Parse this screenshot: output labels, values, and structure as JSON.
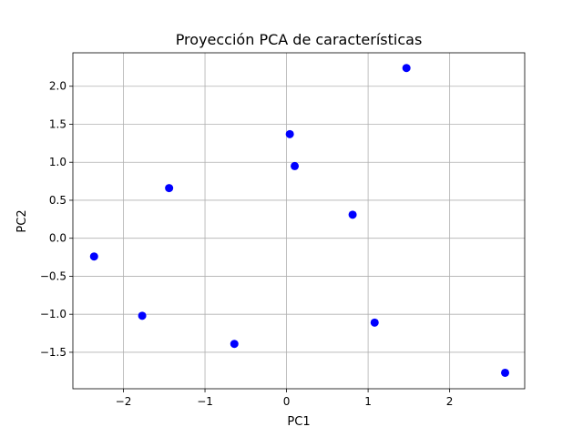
{
  "chart_data": {
    "type": "scatter",
    "title": "Proyección PCA de características",
    "xlabel": "PC1",
    "ylabel": "PC2",
    "xlim": [
      -2.62,
      2.92
    ],
    "ylim": [
      -1.98,
      2.44
    ],
    "xticks": [
      -2,
      -1,
      0,
      1,
      2
    ],
    "xtick_labels": [
      "−2",
      "−1",
      "0",
      "1",
      "2"
    ],
    "yticks": [
      -1.5,
      -1.0,
      -0.5,
      0.0,
      0.5,
      1.0,
      1.5,
      2.0
    ],
    "ytick_labels": [
      "−1.5",
      "−1.0",
      "−0.5",
      "0.0",
      "0.5",
      "1.0",
      "1.5",
      "2.0"
    ],
    "grid": true,
    "marker_color": "#0000ff",
    "points": [
      {
        "x": -2.36,
        "y": -0.24
      },
      {
        "x": -1.77,
        "y": -1.02
      },
      {
        "x": -1.44,
        "y": 0.66
      },
      {
        "x": -0.64,
        "y": -1.39
      },
      {
        "x": 0.04,
        "y": 1.37
      },
      {
        "x": 0.1,
        "y": 0.95
      },
      {
        "x": 0.81,
        "y": 0.31
      },
      {
        "x": 1.08,
        "y": -1.11
      },
      {
        "x": 1.47,
        "y": 2.24
      },
      {
        "x": 2.68,
        "y": -1.77
      }
    ]
  }
}
